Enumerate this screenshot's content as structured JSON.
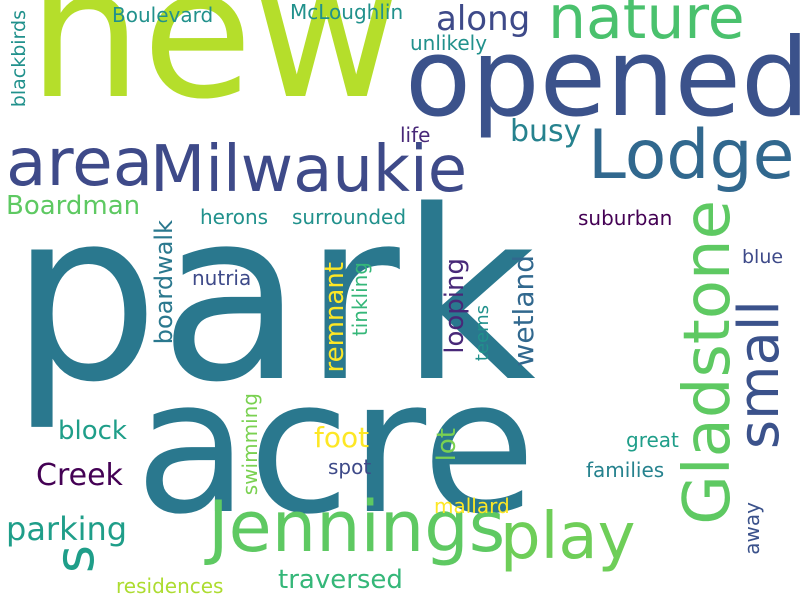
{
  "words": [
    {
      "text": "park",
      "color": "#2a788e",
      "vertical": false
    },
    {
      "text": "acre",
      "color": "#2a788e",
      "vertical": false
    },
    {
      "text": "new",
      "color": "#b5de2b",
      "vertical": false
    },
    {
      "text": "opened",
      "color": "#3b528b",
      "vertical": false
    },
    {
      "text": "nature",
      "color": "#4ac16d",
      "vertical": false
    },
    {
      "text": "Milwaukie",
      "color": "#3e4a89",
      "vertical": false
    },
    {
      "text": "Lodge",
      "color": "#31688e",
      "vertical": false
    },
    {
      "text": "area",
      "color": "#3e4a89",
      "vertical": false
    },
    {
      "text": "Jennings",
      "color": "#5ec962",
      "vertical": false
    },
    {
      "text": "play",
      "color": "#6ece58",
      "vertical": false
    },
    {
      "text": "Gladstone",
      "color": "#5ec962",
      "vertical": true
    },
    {
      "text": "small",
      "color": "#3b528b",
      "vertical": true
    },
    {
      "text": "s",
      "color": "#1f9e89",
      "vertical": true
    },
    {
      "text": "along",
      "color": "#3e4a89",
      "vertical": false
    },
    {
      "text": "busy",
      "color": "#26828e",
      "vertical": false
    },
    {
      "text": "Boardman",
      "color": "#5ec962",
      "vertical": false
    },
    {
      "text": "parking",
      "color": "#1f9e89",
      "vertical": false
    },
    {
      "text": "traversed",
      "color": "#35b779",
      "vertical": false
    },
    {
      "text": "block",
      "color": "#1f9e89",
      "vertical": false
    },
    {
      "text": "Creek",
      "color": "#440154",
      "vertical": false
    },
    {
      "text": "foot",
      "color": "#fde725",
      "vertical": false
    },
    {
      "text": "wetland",
      "color": "#31688e",
      "vertical": true
    },
    {
      "text": "looping",
      "color": "#482878",
      "vertical": true
    },
    {
      "text": "lot",
      "color": "#7ad151",
      "vertical": true
    },
    {
      "text": "remnant",
      "color": "#fde725",
      "vertical": true
    },
    {
      "text": "boardwalk",
      "color": "#2a788e",
      "vertical": true
    },
    {
      "text": "Boulevard",
      "color": "#21918c",
      "vertical": false
    },
    {
      "text": "McLoughlin",
      "color": "#21918c",
      "vertical": false
    },
    {
      "text": "unlikely",
      "color": "#21918c",
      "vertical": false
    },
    {
      "text": "life",
      "color": "#482878",
      "vertical": false
    },
    {
      "text": "blackbirds",
      "color": "#21918c",
      "vertical": true
    },
    {
      "text": "herons",
      "color": "#21918c",
      "vertical": false
    },
    {
      "text": "surrounded",
      "color": "#21918c",
      "vertical": false
    },
    {
      "text": "suburban",
      "color": "#440154",
      "vertical": false
    },
    {
      "text": "blue",
      "color": "#3e4a89",
      "vertical": false
    },
    {
      "text": "nutria",
      "color": "#3e4a89",
      "vertical": false
    },
    {
      "text": "tinkling",
      "color": "#35b779",
      "vertical": true
    },
    {
      "text": "teems",
      "color": "#21918c",
      "vertical": true
    },
    {
      "text": "great",
      "color": "#1f9e89",
      "vertical": false
    },
    {
      "text": "spot",
      "color": "#3e4a89",
      "vertical": false
    },
    {
      "text": "families",
      "color": "#26828e",
      "vertical": false
    },
    {
      "text": "swimming",
      "color": "#7ad151",
      "vertical": true
    },
    {
      "text": "mallard",
      "color": "#fde725",
      "vertical": false
    },
    {
      "text": "away",
      "color": "#3b528b",
      "vertical": true
    },
    {
      "text": "residences",
      "color": "#addc30",
      "vertical": false
    }
  ]
}
